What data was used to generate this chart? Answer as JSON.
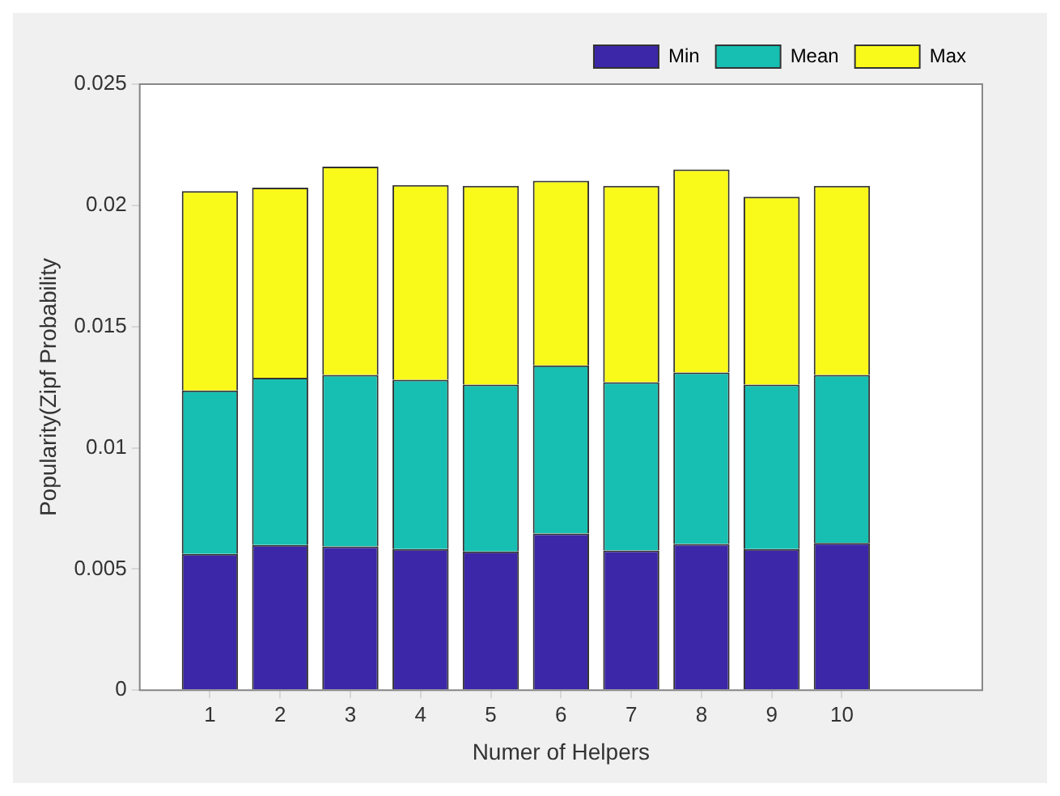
{
  "chart_data": {
    "type": "bar",
    "stacked": true,
    "xlabel": "Numer of Helpers",
    "ylabel": "Popularity(Zipf Probability",
    "x": [
      1,
      2,
      3,
      4,
      5,
      6,
      7,
      8,
      9,
      10
    ],
    "series": [
      {
        "name": "Min",
        "color": "#3c27a8",
        "values": [
          0.00562,
          0.00599,
          0.00593,
          0.00582,
          0.00572,
          0.00646,
          0.00576,
          0.00603,
          0.00582,
          0.00607
        ]
      },
      {
        "name": "Mean",
        "color": "#17bfb2",
        "values": [
          0.00674,
          0.0069,
          0.00707,
          0.00698,
          0.00688,
          0.00694,
          0.00694,
          0.00707,
          0.00678,
          0.00693
        ]
      },
      {
        "name": "Max",
        "color": "#f9f91a",
        "values": [
          0.00823,
          0.00784,
          0.0086,
          0.00804,
          0.0082,
          0.00761,
          0.0081,
          0.00838,
          0.00775,
          0.0078
        ]
      }
    ],
    "xlim": [
      0,
      12
    ],
    "xticks": [
      1,
      2,
      3,
      4,
      5,
      6,
      7,
      8,
      9,
      10
    ],
    "ylim": [
      0,
      0.025
    ],
    "yticks": [
      0,
      0.005,
      0.01,
      0.015,
      0.02,
      0.025
    ],
    "grid": false,
    "legend": "top right"
  }
}
